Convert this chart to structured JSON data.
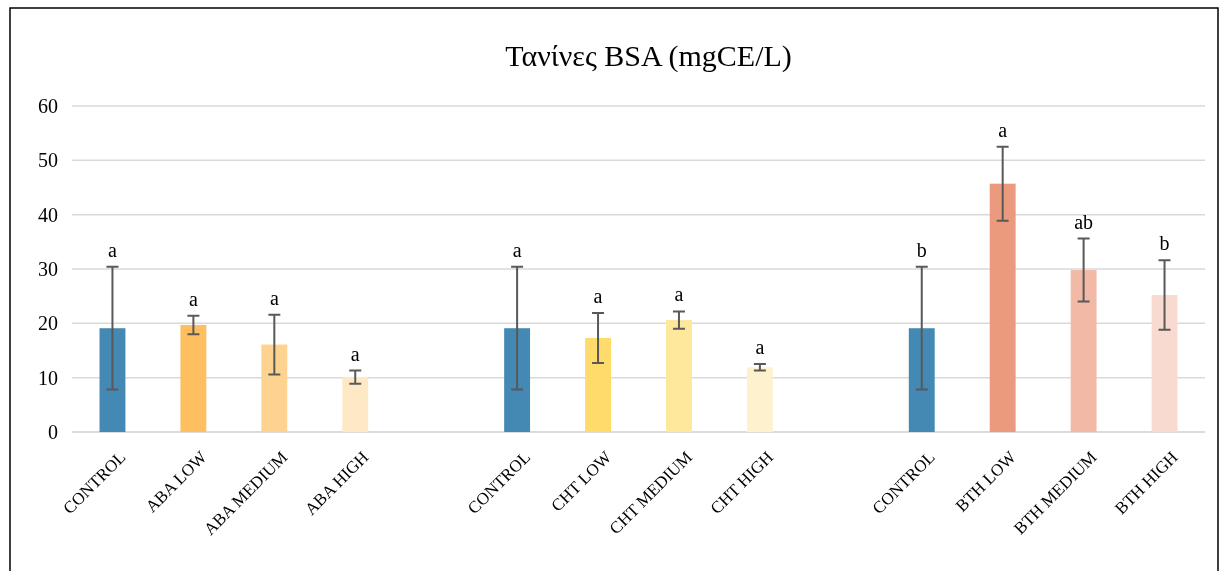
{
  "chart_data": {
    "type": "bar",
    "title": "Τανίνες BSA (mgCE/L)",
    "categories": [
      "CONTROL",
      "ABA LOW",
      "ABA MEDIUM",
      "ABA HIGH",
      null,
      "CONTROL",
      "CHT LOW",
      "CHT MEDIUM",
      "CHT HIGH",
      null,
      "CONTROL",
      "BTH LOW",
      "BTH MEDIUM",
      "BTH HIGH"
    ],
    "values": [
      19.1,
      19.7,
      16.1,
      10.1,
      null,
      19.1,
      17.3,
      20.6,
      11.9,
      null,
      19.1,
      45.7,
      29.8,
      25.2
    ],
    "errors": [
      11.3,
      1.7,
      5.5,
      1.2,
      null,
      11.3,
      4.6,
      1.6,
      0.6,
      null,
      11.3,
      6.8,
      5.8,
      6.4
    ],
    "annotations": [
      "a",
      "a",
      "a",
      "a",
      "a",
      "a",
      "a",
      "a",
      "b",
      "a",
      "ab",
      "b"
    ],
    "colors": [
      "#4389b4",
      "#fdbf5f",
      "#fed38f",
      "#fee9c7",
      null,
      "#4389b4",
      "#fedb6a",
      "#fee89c",
      "#fef2ce",
      null,
      "#4389b4",
      "#eb9a7e",
      "#f2b9a6",
      "#f8dad1"
    ],
    "ylim": [
      0,
      60
    ],
    "yticks": [
      0,
      10,
      20,
      30,
      40,
      50,
      60
    ],
    "grid": "y"
  }
}
